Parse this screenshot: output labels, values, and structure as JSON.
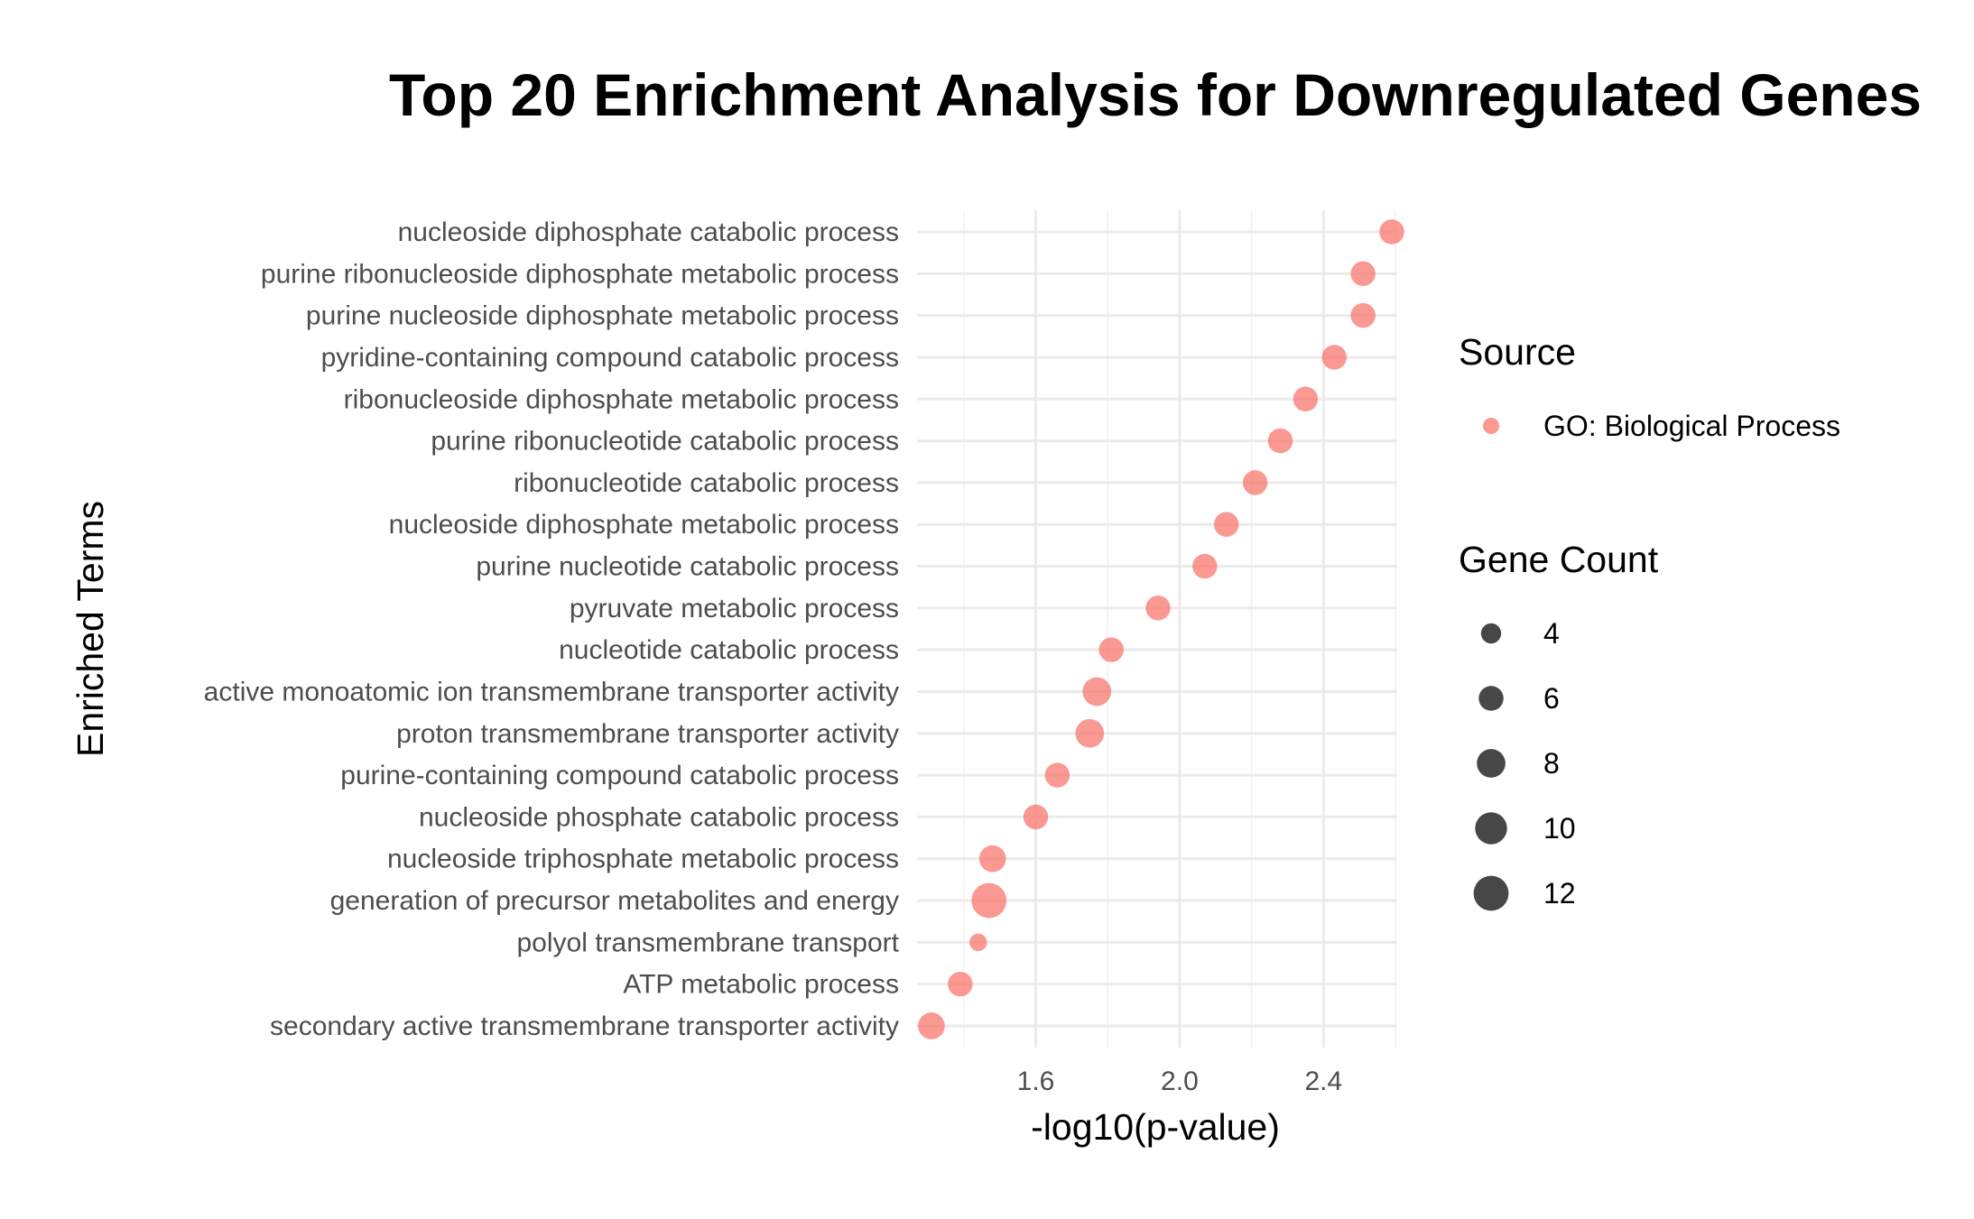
{
  "chart_data": {
    "type": "scatter",
    "title": "Top 20 Enrichment Analysis for Downregulated Genes",
    "xlabel": "-log10(p-value)",
    "ylabel": "Enriched Terms",
    "xlim": [
      1.27,
      2.605
    ],
    "x_ticks": [
      1.6,
      2.0,
      2.4
    ],
    "x_tick_labels": [
      "1.6",
      "2.0",
      "2.4"
    ],
    "grid": true,
    "point_color": "#F8766D",
    "legend_size_color": "#333333",
    "terms": [
      "nucleoside diphosphate catabolic process",
      "purine ribonucleoside diphosphate metabolic process",
      "purine nucleoside diphosphate metabolic process",
      "pyridine-containing compound catabolic process",
      "ribonucleoside diphosphate metabolic process",
      "purine ribonucleotide catabolic process",
      "ribonucleotide catabolic process",
      "nucleoside diphosphate metabolic process",
      "purine nucleotide catabolic process",
      "pyruvate metabolic process",
      "nucleotide catabolic process",
      "active monoatomic ion transmembrane transporter activity",
      "proton transmembrane transporter activity",
      "purine-containing compound catabolic process",
      "nucleoside phosphate catabolic process",
      "nucleoside triphosphate metabolic process",
      "generation of precursor metabolites and energy",
      "polyol transmembrane transport",
      "ATP metabolic process",
      "secondary active transmembrane transporter activity"
    ],
    "x": [
      2.59,
      2.51,
      2.51,
      2.43,
      2.35,
      2.28,
      2.21,
      2.13,
      2.07,
      1.94,
      1.81,
      1.77,
      1.75,
      1.66,
      1.6,
      1.48,
      1.47,
      1.44,
      1.39,
      1.31
    ],
    "gene_count": [
      6,
      6,
      6,
      6,
      6,
      6,
      6,
      6,
      6,
      6,
      6,
      8,
      8,
      6,
      6,
      7,
      12,
      3,
      6,
      7
    ],
    "legend": {
      "placement": "right",
      "source_title": "Source",
      "source_entries": [
        "GO: Biological Process"
      ],
      "size_title": "Gene Count",
      "size_breaks": [
        4,
        6,
        8,
        10,
        12
      ],
      "size_labels": [
        "4",
        "6",
        "8",
        "10",
        "12"
      ]
    }
  }
}
